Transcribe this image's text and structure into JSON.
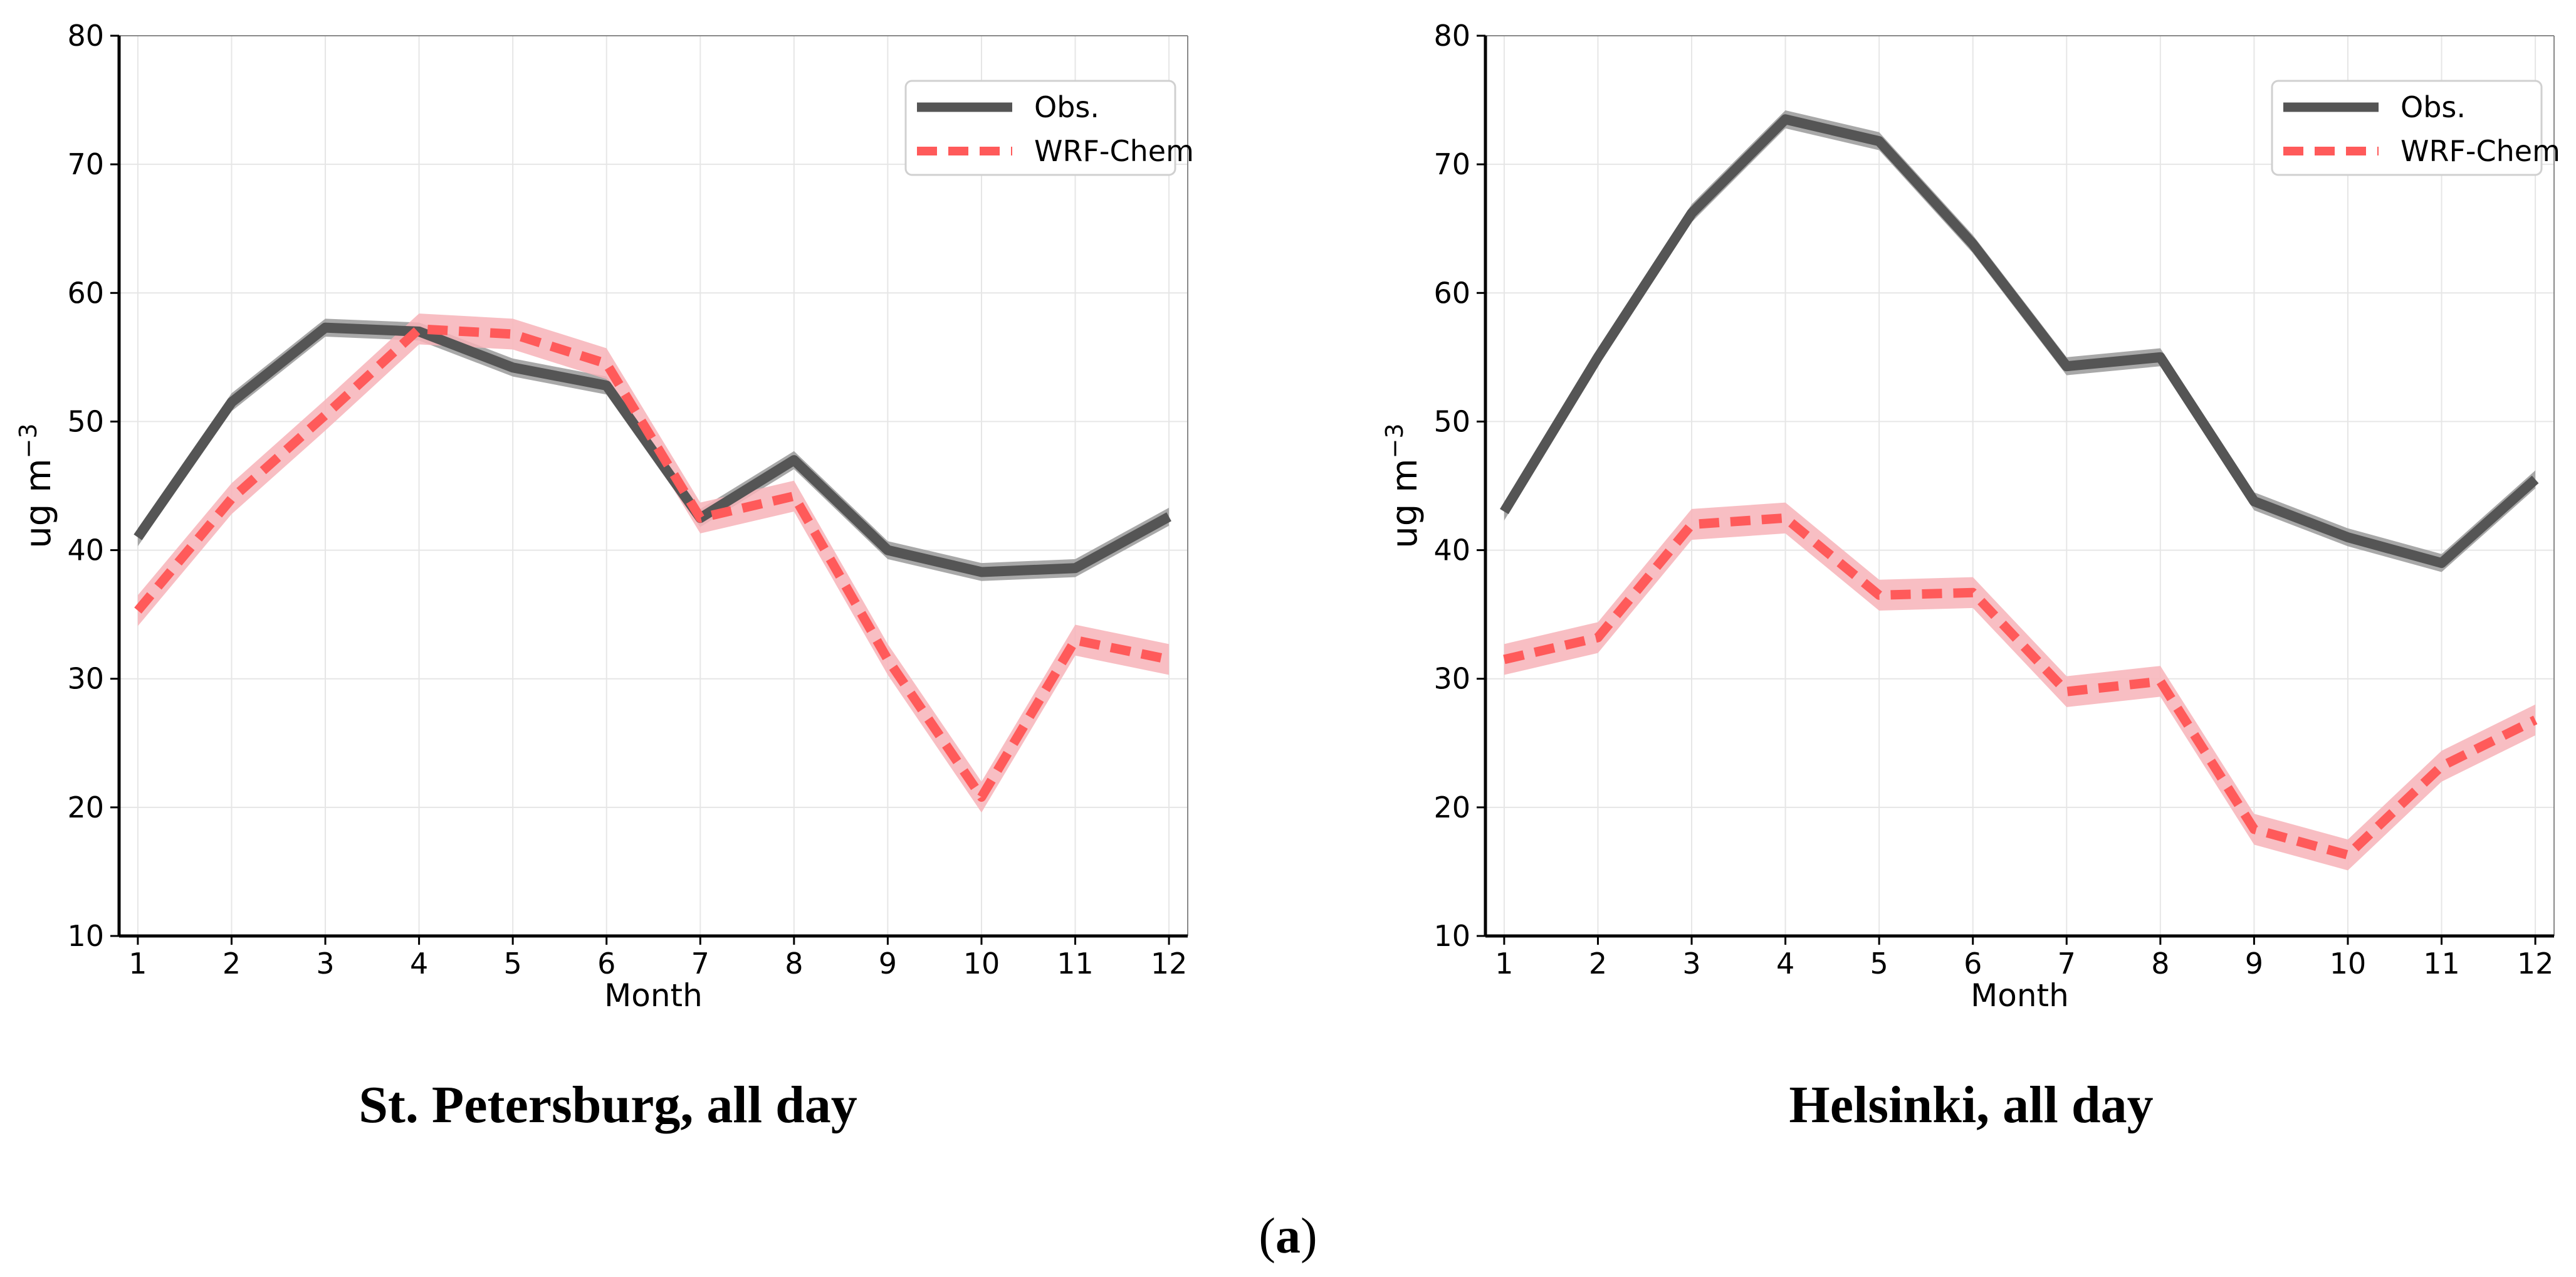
{
  "figure_label": {
    "open": "(",
    "letter": "a",
    "close": ")"
  },
  "colors": {
    "obs": "#555555",
    "obs_band": "#999999",
    "model": "#ff5a5a",
    "model_band": "#f7b3b9",
    "grid": "#e6e6e6",
    "axis": "#000000"
  },
  "chart_data": [
    {
      "type": "line",
      "caption": "St. Petersburg, all day",
      "xlabel": "Month",
      "ylabel_base": "ug m",
      "ylabel_exp": "−3",
      "x": [
        1,
        2,
        3,
        4,
        5,
        6,
        7,
        8,
        9,
        10,
        11,
        12
      ],
      "xlim": [
        0.8,
        12.2
      ],
      "ylim": [
        10,
        80
      ],
      "yticks": [
        10,
        20,
        30,
        40,
        50,
        60,
        70,
        80
      ],
      "grid": true,
      "legend_position": "top-right",
      "series": [
        {
          "key": "obs",
          "name": "Obs.",
          "style": "solid",
          "values": [
            41,
            51.5,
            57.3,
            57.0,
            54.2,
            52.8,
            42.5,
            47.0,
            40.0,
            38.3,
            38.6,
            42.6
          ],
          "band": 0.7
        },
        {
          "key": "model",
          "name": "WRF-Chem",
          "style": "dashed",
          "values": [
            35.3,
            44.0,
            50.5,
            57.2,
            56.8,
            54.5,
            42.5,
            44.2,
            31.5,
            20.8,
            33.0,
            31.5
          ],
          "band": 1.2
        }
      ]
    },
    {
      "type": "line",
      "caption": "Helsinki, all day",
      "xlabel": "Month",
      "ylabel_base": "ug m",
      "ylabel_exp": "−3",
      "x": [
        1,
        2,
        3,
        4,
        5,
        6,
        7,
        8,
        9,
        10,
        11,
        12
      ],
      "xlim": [
        0.8,
        12.2
      ],
      "ylim": [
        10,
        80
      ],
      "yticks": [
        10,
        20,
        30,
        40,
        50,
        60,
        70,
        80
      ],
      "grid": true,
      "legend_position": "top-right",
      "series": [
        {
          "key": "obs",
          "name": "Obs.",
          "style": "solid",
          "values": [
            43.0,
            55.0,
            66.2,
            73.5,
            71.8,
            63.8,
            54.3,
            55.0,
            43.8,
            41.0,
            39.0,
            45.5
          ],
          "band": 0.7
        },
        {
          "key": "model",
          "name": "WRF-Chem",
          "style": "dashed",
          "values": [
            31.5,
            33.2,
            42.0,
            42.5,
            36.5,
            36.7,
            29.0,
            29.8,
            18.3,
            16.3,
            23.2,
            26.8
          ],
          "band": 1.2
        }
      ]
    }
  ]
}
